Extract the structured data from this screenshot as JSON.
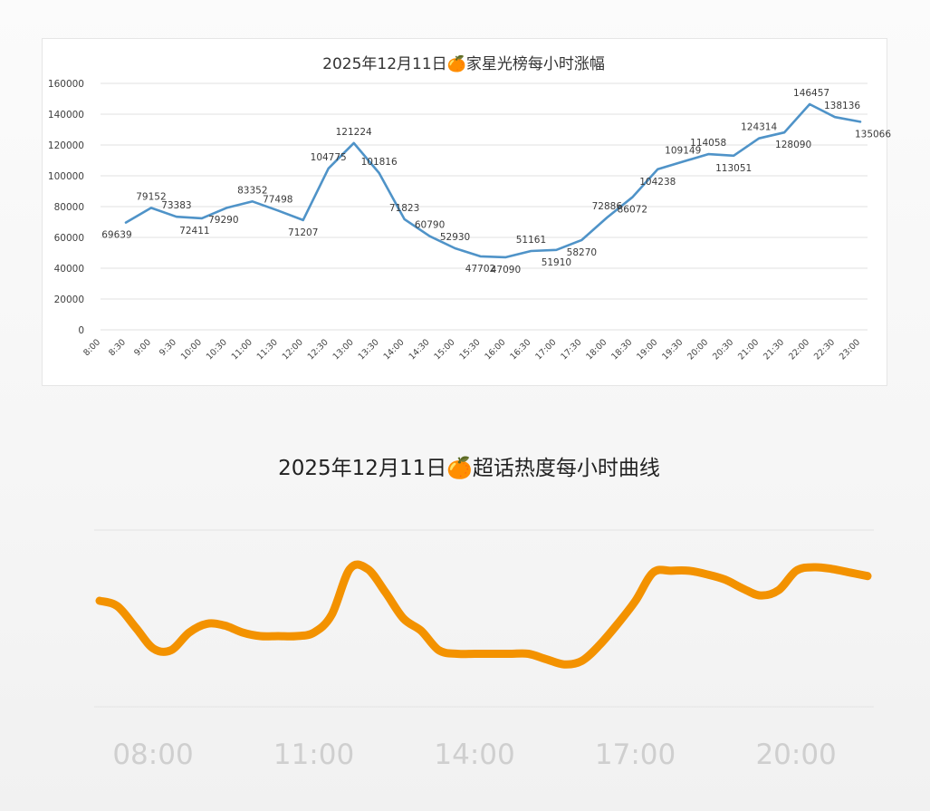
{
  "chart_data": [
    {
      "type": "line",
      "title": "2025年12月11日🍊家星光榜每小时涨幅",
      "xlabel": "",
      "ylabel": "",
      "categories": [
        "8:00",
        "8:30",
        "9:00",
        "9:30",
        "10:00",
        "10:30",
        "11:00",
        "11:30",
        "12:00",
        "12:30",
        "13:00",
        "13:30",
        "14:00",
        "14:30",
        "15:00",
        "15:30",
        "16:00",
        "16:30",
        "17:00",
        "17:30",
        "18:00",
        "18:30",
        "19:00",
        "19:30",
        "20:00",
        "20:30",
        "21:00",
        "21:30",
        "22:00",
        "22:30",
        "23:00"
      ],
      "series": [
        {
          "name": "",
          "values": [
            null,
            69639,
            79152,
            73383,
            72411,
            79290,
            83352,
            77498,
            71207,
            104775,
            121224,
            101816,
            71823,
            60790,
            52930,
            47702,
            47090,
            51161,
            51910,
            58270,
            72886,
            86072,
            104238,
            109149,
            114058,
            113051,
            124314,
            128090,
            146457,
            138136,
            135066
          ]
        }
      ],
      "data_labels": [
        "",
        "69639",
        "79152",
        "73383",
        "72411",
        "79290",
        "83352",
        "77498",
        "71207",
        "104775",
        "121224",
        "101816",
        "71823",
        "60790",
        "52930",
        "47702",
        "47090",
        "51161",
        "51910",
        "58270",
        "72886",
        "86072",
        "104238",
        "109149",
        "114058",
        "113051",
        "124314",
        "128090",
        "146457",
        "138136",
        "135066"
      ],
      "yticks": [
        "0",
        "20000",
        "40000",
        "60000",
        "80000",
        "100000",
        "120000",
        "140000",
        "160000"
      ],
      "ylim": [
        0,
        160000
      ],
      "grid": true,
      "legend": "none",
      "colors": {
        "line": "#4f93c8",
        "grid": "#e2e2e2",
        "text": "#404040"
      }
    },
    {
      "type": "line",
      "title": "2025年12月11日🍊超话热度每小时曲线",
      "xlabel": "",
      "ylabel": "",
      "x": [
        8.0,
        8.33,
        8.67,
        9.0,
        9.33,
        9.67,
        10.0,
        10.33,
        10.67,
        11.0,
        11.33,
        11.67,
        12.0,
        12.33,
        12.67,
        13.0,
        13.33,
        13.67,
        14.0,
        14.33,
        14.67,
        15.0,
        15.33,
        15.67,
        16.0,
        16.33,
        16.67,
        17.0,
        17.33,
        17.67,
        18.0,
        18.33,
        18.67,
        19.0,
        19.33,
        19.67,
        20.0,
        20.33,
        20.67,
        21.0,
        21.33,
        21.67,
        22.0,
        22.33
      ],
      "series": [
        {
          "name": "",
          "values": [
            60,
            57,
            45,
            33,
            32,
            42,
            47,
            46,
            42,
            40,
            40,
            40,
            42,
            52,
            78,
            78,
            65,
            50,
            43,
            32,
            30,
            30,
            30,
            30,
            30,
            27,
            24,
            26,
            35,
            47,
            60,
            76,
            77,
            77,
            75,
            72,
            67,
            63,
            66,
            77,
            79,
            78,
            76,
            74
          ]
        }
      ],
      "xticks": [
        "08:00",
        "11:00",
        "14:00",
        "17:00",
        "20:00"
      ],
      "ylim": [
        0,
        100
      ],
      "grid": true,
      "legend": "none",
      "colors": {
        "line": "#f39200",
        "grid": "#e6e6e6",
        "tick_text": "#cfcfcf",
        "title_text": "#222222"
      }
    }
  ]
}
